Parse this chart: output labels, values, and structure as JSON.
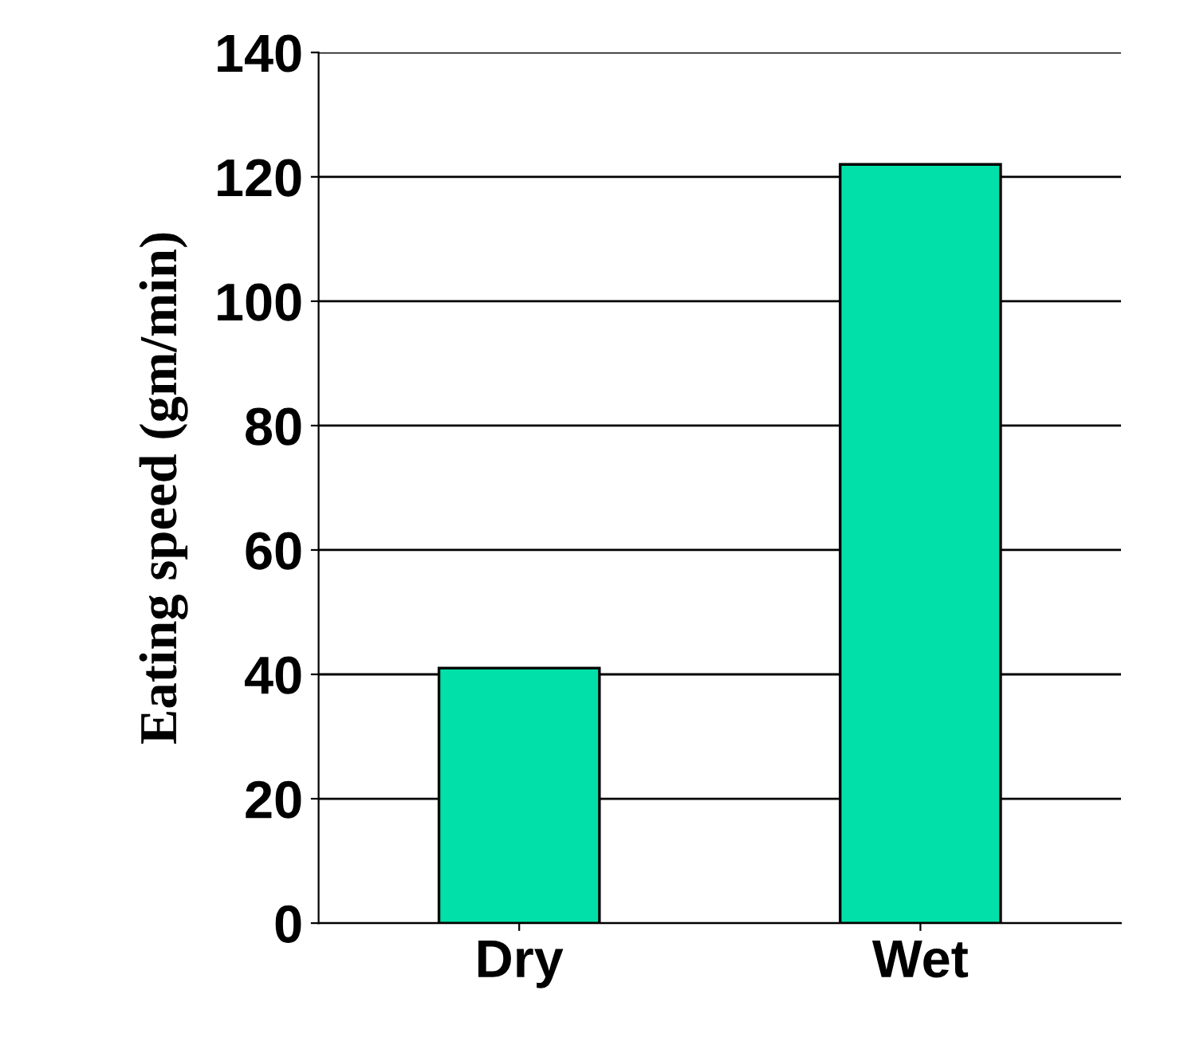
{
  "chart_data": {
    "type": "bar",
    "ylabel": "Eating speed (gm/min)",
    "categories": [
      "Dry",
      "Wet"
    ],
    "values": [
      41,
      122
    ],
    "color": "#00e0a8",
    "ylim": [
      0,
      140
    ],
    "yticks": [
      0,
      20,
      40,
      60,
      80,
      100,
      120,
      140
    ],
    "grid": "y"
  }
}
